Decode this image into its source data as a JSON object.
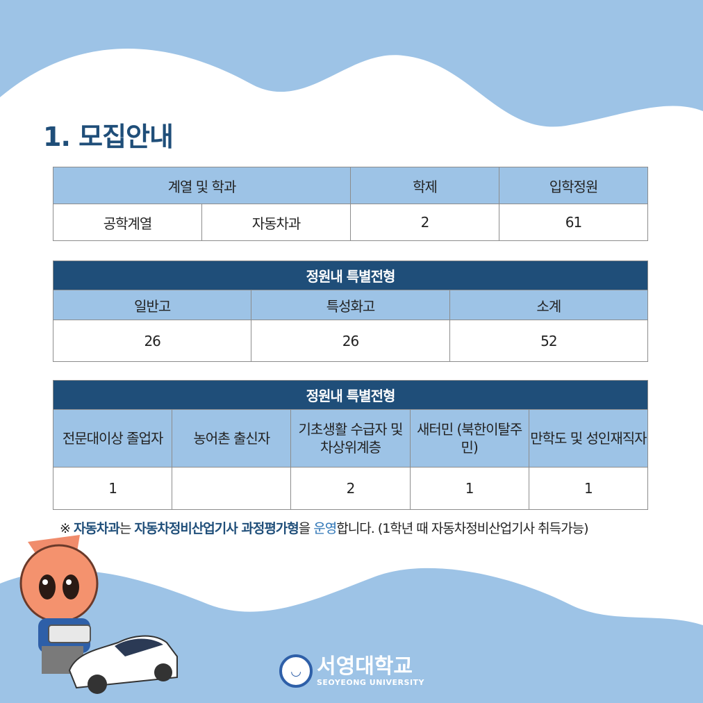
{
  "title": "1. 모집안내",
  "table1": {
    "headers": [
      "계열 및 학과",
      "학제",
      "입학정원"
    ],
    "row": [
      "공학계열",
      "자동차과",
      "2",
      "61"
    ]
  },
  "table2": {
    "title": "정원내 특별전형",
    "headers": [
      "일반고",
      "특성화고",
      "소계"
    ],
    "row": [
      "26",
      "26",
      "52"
    ]
  },
  "table3": {
    "title": "정원내 특별전형",
    "headers": [
      "전문대이상 졸업자",
      "농어촌 출신자",
      "기초생활 수급자 및 차상위계층",
      "새터민 (북한이탈주민)",
      "만학도 및 성인재직자"
    ],
    "row": [
      "1",
      "",
      "2",
      "1",
      "1"
    ]
  },
  "note": {
    "mark": "※",
    "dept": "자동차과",
    "p1": "는",
    "course": "자동차정비산업기사 과정평가형",
    "p2": "을",
    "op": "운영",
    "p3": "합니다. (1학년 때 자동차정비산업기사 취득가능)"
  },
  "logo": {
    "name": "서영대학교",
    "sub": "SEOYEONG UNIVERSITY"
  },
  "colors": {
    "background": "#9dc3e6",
    "accent": "#1f4e79"
  }
}
